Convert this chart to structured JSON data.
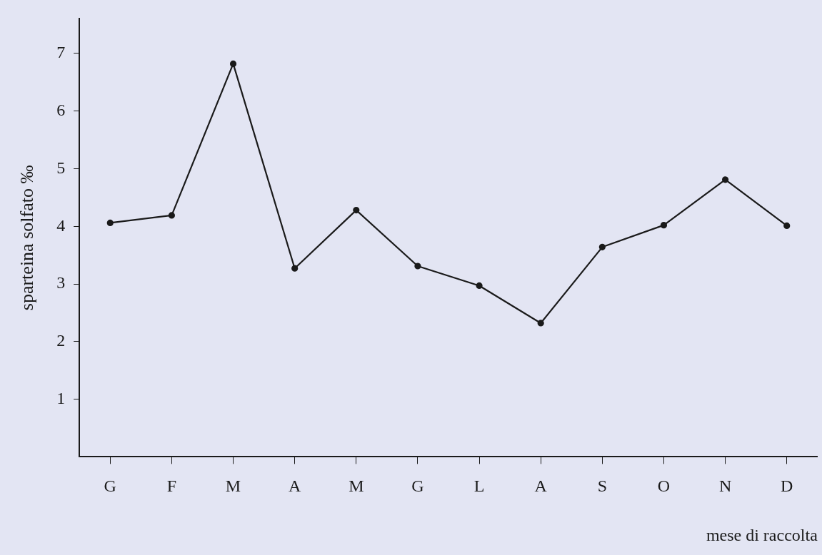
{
  "chart_data": {
    "type": "line",
    "categories": [
      "G",
      "F",
      "M",
      "A",
      "M",
      "G",
      "L",
      "A",
      "S",
      "O",
      "N",
      "D"
    ],
    "series": [
      {
        "color": "#1a1a1a",
        "values": [
          4.06,
          4.19,
          6.82,
          3.27,
          4.28,
          3.31,
          2.97,
          2.32,
          3.64,
          4.02,
          4.81,
          4.01
        ]
      }
    ],
    "xlabel": "mese di raccolta",
    "ylabel": "sparteina solfato ‰",
    "ylim": [
      0,
      7.6
    ],
    "yticks": [
      1,
      2,
      3,
      4,
      5,
      6,
      7
    ],
    "grid": false,
    "legend": false,
    "marker": "circle",
    "line_style": "solid"
  }
}
